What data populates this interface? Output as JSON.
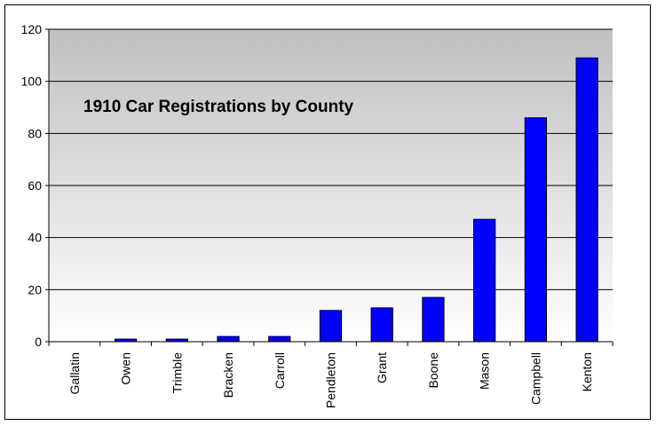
{
  "chart_data": {
    "type": "bar",
    "title": "1910 Car Registrations by County",
    "xlabel": "",
    "ylabel": "",
    "categories": [
      "Gallatin",
      "Owen",
      "Trimble",
      "Bracken",
      "Carroll",
      "Pendleton",
      "Grant",
      "Boone",
      "Mason",
      "Campbell",
      "Kenton"
    ],
    "series": [
      {
        "values": [
          0,
          1,
          1,
          2,
          2,
          12,
          13,
          17,
          47,
          86,
          109
        ]
      }
    ],
    "ylim": [
      0,
      120
    ],
    "yticks": [
      0,
      20,
      40,
      60,
      80,
      100,
      120
    ],
    "grid": true,
    "legend": "none",
    "bar_color": "#0000ff",
    "plot_gradient": [
      "#c0c0c0",
      "#ffffff"
    ]
  }
}
